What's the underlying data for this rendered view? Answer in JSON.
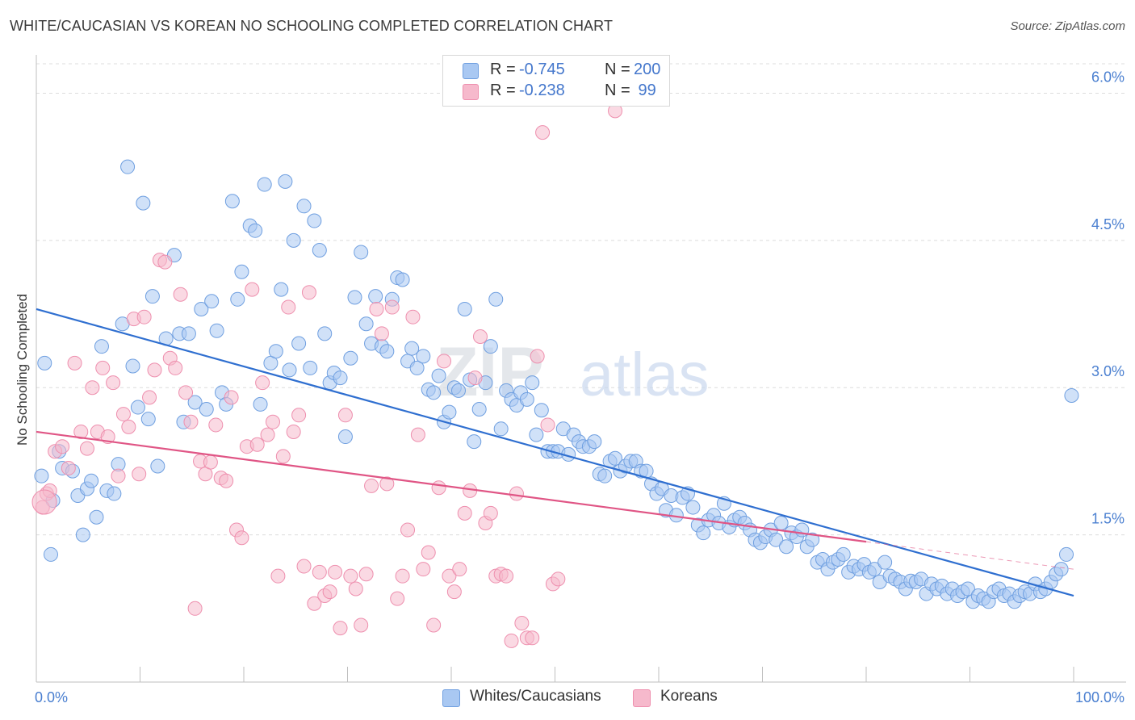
{
  "title": "WHITE/CAUCASIAN VS KOREAN NO SCHOOLING COMPLETED CORRELATION CHART",
  "source": "Source: ZipAtlas.com",
  "watermark": "ZIPatlas",
  "legend": {
    "rows": [
      {
        "r_label": "R =",
        "r_value": "-0.745",
        "n_label": "N =",
        "n_value": "200",
        "color": "#a9c8f2"
      },
      {
        "r_label": "R =",
        "r_value": "-0.238",
        "n_label": "N =",
        "n_value": " 99",
        "color": "#f6b9cc"
      }
    ]
  },
  "bottom_legend": [
    {
      "label": "Whites/Caucasians",
      "color": "#a9c8f2"
    },
    {
      "label": "Koreans",
      "color": "#f6b9cc"
    }
  ],
  "chart_data": {
    "type": "scatter",
    "title": "WHITE/CAUCASIAN VS KOREAN NO SCHOOLING COMPLETED CORRELATION CHART",
    "xlabel": "",
    "ylabel": "No Schooling Completed",
    "xlim": [
      0,
      100
    ],
    "ylim": [
      0,
      6.3
    ],
    "x_tick_labels": [
      "0.0%",
      "100.0%"
    ],
    "y_ticks": [
      1.5,
      3.0,
      4.5,
      6.0
    ],
    "y_tick_labels": [
      "1.5%",
      "3.0%",
      "4.5%",
      "6.0%"
    ],
    "grid": true,
    "legend_position": "top-center",
    "series": [
      {
        "name": "Whites/Caucasians",
        "color": "#a9c8f2",
        "stroke": "#6f9fe0",
        "trend": {
          "x": [
            0,
            100
          ],
          "y": [
            3.8,
            0.88
          ],
          "color": "#2f6fd0"
        },
        "points": [
          [
            0.5,
            2.1
          ],
          [
            0.8,
            3.25
          ],
          [
            1.4,
            1.3
          ],
          [
            1.6,
            1.85
          ],
          [
            2.2,
            2.35
          ],
          [
            2.5,
            2.18
          ],
          [
            3.5,
            2.15
          ],
          [
            4,
            1.9
          ],
          [
            4.5,
            1.5
          ],
          [
            4.9,
            1.97
          ],
          [
            5.3,
            2.05
          ],
          [
            5.8,
            1.68
          ],
          [
            6.3,
            3.42
          ],
          [
            6.8,
            1.95
          ],
          [
            7.5,
            1.92
          ],
          [
            7.9,
            2.22
          ],
          [
            8.3,
            3.65
          ],
          [
            8.8,
            5.25
          ],
          [
            9.3,
            3.22
          ],
          [
            9.8,
            2.8
          ],
          [
            10.3,
            4.88
          ],
          [
            10.8,
            2.68
          ],
          [
            11.2,
            3.93
          ],
          [
            11.7,
            2.2
          ],
          [
            12.5,
            3.5
          ],
          [
            13.3,
            4.35
          ],
          [
            13.8,
            3.55
          ],
          [
            14.2,
            2.65
          ],
          [
            14.7,
            3.55
          ],
          [
            15.3,
            2.85
          ],
          [
            15.9,
            3.8
          ],
          [
            16.4,
            2.78
          ],
          [
            16.9,
            3.88
          ],
          [
            17.4,
            3.58
          ],
          [
            17.9,
            2.95
          ],
          [
            18.3,
            2.83
          ],
          [
            18.9,
            4.9
          ],
          [
            19.4,
            3.9
          ],
          [
            19.8,
            4.18
          ],
          [
            20.6,
            4.65
          ],
          [
            21.1,
            4.6
          ],
          [
            21.6,
            2.83
          ],
          [
            22,
            5.07
          ],
          [
            22.6,
            3.25
          ],
          [
            23.1,
            3.37
          ],
          [
            23.6,
            4.0
          ],
          [
            24,
            5.1
          ],
          [
            24.4,
            3.18
          ],
          [
            24.8,
            4.5
          ],
          [
            25.3,
            3.45
          ],
          [
            25.8,
            4.85
          ],
          [
            26.4,
            3.2
          ],
          [
            26.8,
            4.7
          ],
          [
            27.3,
            4.4
          ],
          [
            27.8,
            3.55
          ],
          [
            28.3,
            3.05
          ],
          [
            28.7,
            3.15
          ],
          [
            29.3,
            3.1
          ],
          [
            29.8,
            2.5
          ],
          [
            30.3,
            3.3
          ],
          [
            30.7,
            3.92
          ],
          [
            31.3,
            4.38
          ],
          [
            31.8,
            3.65
          ],
          [
            32.3,
            3.45
          ],
          [
            32.7,
            3.93
          ],
          [
            33.3,
            3.42
          ],
          [
            33.8,
            3.37
          ],
          [
            34.3,
            3.9
          ],
          [
            34.8,
            4.12
          ],
          [
            35.3,
            4.1
          ],
          [
            35.8,
            3.27
          ],
          [
            36.2,
            3.4
          ],
          [
            36.7,
            3.2
          ],
          [
            37.3,
            3.32
          ],
          [
            37.8,
            2.98
          ],
          [
            38.3,
            2.95
          ],
          [
            38.8,
            3.12
          ],
          [
            39.3,
            2.65
          ],
          [
            39.8,
            2.75
          ],
          [
            40.3,
            3.0
          ],
          [
            40.7,
            2.97
          ],
          [
            41.3,
            3.8
          ],
          [
            41.8,
            3.08
          ],
          [
            42.2,
            2.45
          ],
          [
            42.7,
            2.78
          ],
          [
            43.3,
            3.05
          ],
          [
            43.8,
            3.42
          ],
          [
            44.3,
            3.9
          ],
          [
            44.8,
            2.58
          ],
          [
            45.3,
            2.97
          ],
          [
            45.8,
            2.88
          ],
          [
            46.3,
            2.82
          ],
          [
            46.7,
            2.95
          ],
          [
            47.3,
            2.88
          ],
          [
            47.8,
            3.05
          ],
          [
            48.2,
            2.52
          ],
          [
            48.7,
            2.77
          ],
          [
            49.3,
            2.35
          ],
          [
            49.8,
            2.35
          ],
          [
            50.3,
            2.35
          ],
          [
            50.8,
            2.58
          ],
          [
            51.3,
            2.32
          ],
          [
            51.8,
            2.52
          ],
          [
            52.3,
            2.45
          ],
          [
            52.7,
            2.4
          ],
          [
            53.3,
            2.4
          ],
          [
            53.8,
            2.45
          ],
          [
            54.3,
            2.12
          ],
          [
            54.8,
            2.1
          ],
          [
            55.3,
            2.25
          ],
          [
            55.8,
            2.28
          ],
          [
            56.3,
            2.15
          ],
          [
            56.8,
            2.2
          ],
          [
            57.3,
            2.25
          ],
          [
            57.8,
            2.25
          ],
          [
            58.3,
            2.15
          ],
          [
            58.8,
            2.15
          ],
          [
            59.3,
            2.02
          ],
          [
            59.8,
            1.92
          ],
          [
            60.3,
            1.97
          ],
          [
            60.7,
            1.75
          ],
          [
            61.2,
            1.9
          ],
          [
            61.7,
            1.7
          ],
          [
            62.3,
            1.88
          ],
          [
            62.8,
            1.92
          ],
          [
            63.3,
            1.78
          ],
          [
            63.8,
            1.6
          ],
          [
            64.3,
            1.52
          ],
          [
            64.8,
            1.65
          ],
          [
            65.3,
            1.7
          ],
          [
            65.8,
            1.62
          ],
          [
            66.3,
            1.82
          ],
          [
            66.8,
            1.58
          ],
          [
            67.3,
            1.65
          ],
          [
            67.8,
            1.68
          ],
          [
            68.3,
            1.62
          ],
          [
            68.8,
            1.55
          ],
          [
            69.3,
            1.45
          ],
          [
            69.8,
            1.42
          ],
          [
            70.3,
            1.48
          ],
          [
            70.8,
            1.55
          ],
          [
            71.3,
            1.45
          ],
          [
            71.8,
            1.62
          ],
          [
            72.3,
            1.38
          ],
          [
            72.8,
            1.52
          ],
          [
            73.3,
            1.48
          ],
          [
            73.8,
            1.55
          ],
          [
            74.3,
            1.38
          ],
          [
            74.8,
            1.45
          ],
          [
            75.3,
            1.22
          ],
          [
            75.8,
            1.25
          ],
          [
            76.3,
            1.15
          ],
          [
            76.8,
            1.22
          ],
          [
            77.3,
            1.25
          ],
          [
            77.8,
            1.3
          ],
          [
            78.3,
            1.12
          ],
          [
            78.8,
            1.18
          ],
          [
            79.3,
            1.15
          ],
          [
            79.8,
            1.2
          ],
          [
            80.3,
            1.12
          ],
          [
            80.8,
            1.15
          ],
          [
            81.3,
            1.02
          ],
          [
            81.8,
            1.22
          ],
          [
            82.3,
            1.08
          ],
          [
            82.8,
            1.05
          ],
          [
            83.3,
            1.02
          ],
          [
            83.8,
            0.95
          ],
          [
            84.3,
            1.03
          ],
          [
            84.8,
            1.02
          ],
          [
            85.3,
            1.05
          ],
          [
            85.8,
            0.9
          ],
          [
            86.3,
            1.0
          ],
          [
            86.8,
            0.95
          ],
          [
            87.3,
            0.98
          ],
          [
            87.8,
            0.9
          ],
          [
            88.3,
            0.95
          ],
          [
            88.8,
            0.88
          ],
          [
            89.3,
            0.92
          ],
          [
            89.8,
            0.95
          ],
          [
            90.3,
            0.82
          ],
          [
            90.8,
            0.88
          ],
          [
            91.3,
            0.85
          ],
          [
            91.8,
            0.82
          ],
          [
            92.3,
            0.92
          ],
          [
            92.8,
            0.95
          ],
          [
            93.3,
            0.88
          ],
          [
            93.8,
            0.9
          ],
          [
            94.3,
            0.82
          ],
          [
            94.8,
            0.88
          ],
          [
            95.3,
            0.92
          ],
          [
            95.8,
            0.9
          ],
          [
            96.3,
            1.0
          ],
          [
            96.8,
            0.92
          ],
          [
            97.3,
            0.95
          ],
          [
            97.8,
            1.02
          ],
          [
            98.3,
            1.1
          ],
          [
            98.8,
            1.15
          ],
          [
            99.3,
            1.3
          ],
          [
            99.8,
            2.92
          ]
        ]
      },
      {
        "name": "Koreans",
        "color": "#f6b9cc",
        "stroke": "#ee8fae",
        "trend": {
          "x": [
            0,
            80
          ],
          "y": [
            2.55,
            1.43
          ],
          "color": "#e05585"
        },
        "trend_dashed": {
          "x": [
            80,
            100
          ],
          "y": [
            1.43,
            1.15
          ]
        },
        "points": [
          [
            0.6,
            1.78
          ],
          [
            1.0,
            1.92
          ],
          [
            1.3,
            1.95
          ],
          [
            1.8,
            2.35
          ],
          [
            2.5,
            2.4
          ],
          [
            3.1,
            2.18
          ],
          [
            3.7,
            3.25
          ],
          [
            4.3,
            2.55
          ],
          [
            4.9,
            2.38
          ],
          [
            5.4,
            3.0
          ],
          [
            5.9,
            2.55
          ],
          [
            6.4,
            3.2
          ],
          [
            6.9,
            2.5
          ],
          [
            7.4,
            3.05
          ],
          [
            7.9,
            2.1
          ],
          [
            8.4,
            2.73
          ],
          [
            8.9,
            2.6
          ],
          [
            9.4,
            3.7
          ],
          [
            9.9,
            2.12
          ],
          [
            10.4,
            3.72
          ],
          [
            10.9,
            2.9
          ],
          [
            11.4,
            3.18
          ],
          [
            11.9,
            4.3
          ],
          [
            12.4,
            4.28
          ],
          [
            12.9,
            3.3
          ],
          [
            13.4,
            3.2
          ],
          [
            13.9,
            3.95
          ],
          [
            14.4,
            2.95
          ],
          [
            14.9,
            2.65
          ],
          [
            15.3,
            0.75
          ],
          [
            15.8,
            2.25
          ],
          [
            16.3,
            2.12
          ],
          [
            16.8,
            2.24
          ],
          [
            17.3,
            2.62
          ],
          [
            17.8,
            2.08
          ],
          [
            18.3,
            2.05
          ],
          [
            18.8,
            2.9
          ],
          [
            19.3,
            1.55
          ],
          [
            19.8,
            1.47
          ],
          [
            20.3,
            2.4
          ],
          [
            20.8,
            4.0
          ],
          [
            21.3,
            2.42
          ],
          [
            21.8,
            3.05
          ],
          [
            22.3,
            2.52
          ],
          [
            22.8,
            2.65
          ],
          [
            23.3,
            1.08
          ],
          [
            23.8,
            2.3
          ],
          [
            24.3,
            3.82
          ],
          [
            24.8,
            2.55
          ],
          [
            25.3,
            2.72
          ],
          [
            25.8,
            1.18
          ],
          [
            26.3,
            3.97
          ],
          [
            26.8,
            0.8
          ],
          [
            27.3,
            1.12
          ],
          [
            27.8,
            0.88
          ],
          [
            28.3,
            0.92
          ],
          [
            28.8,
            1.12
          ],
          [
            29.3,
            0.55
          ],
          [
            29.8,
            2.72
          ],
          [
            30.3,
            1.08
          ],
          [
            30.8,
            0.95
          ],
          [
            31.3,
            0.58
          ],
          [
            31.8,
            1.1
          ],
          [
            32.3,
            2.0
          ],
          [
            32.8,
            3.8
          ],
          [
            33.3,
            3.55
          ],
          [
            33.8,
            2.02
          ],
          [
            34.3,
            3.82
          ],
          [
            34.8,
            0.85
          ],
          [
            35.3,
            1.08
          ],
          [
            35.8,
            1.55
          ],
          [
            36.3,
            3.72
          ],
          [
            36.8,
            2.52
          ],
          [
            37.3,
            1.15
          ],
          [
            37.8,
            1.32
          ],
          [
            38.3,
            0.58
          ],
          [
            38.8,
            1.98
          ],
          [
            39.3,
            3.27
          ],
          [
            39.8,
            1.08
          ],
          [
            40.3,
            0.92
          ],
          [
            40.8,
            1.15
          ],
          [
            41.3,
            1.72
          ],
          [
            41.8,
            1.95
          ],
          [
            42.3,
            3.1
          ],
          [
            42.8,
            3.52
          ],
          [
            43.3,
            1.62
          ],
          [
            43.8,
            1.72
          ],
          [
            44.3,
            1.08
          ],
          [
            44.8,
            1.1
          ],
          [
            45.3,
            1.08
          ],
          [
            45.8,
            0.42
          ],
          [
            46.3,
            1.92
          ],
          [
            46.8,
            0.6
          ],
          [
            47.3,
            0.45
          ],
          [
            47.8,
            0.45
          ],
          [
            48.3,
            3.32
          ],
          [
            48.8,
            5.6
          ],
          [
            49.3,
            2.62
          ],
          [
            49.8,
            1.0
          ],
          [
            50.3,
            1.05
          ],
          [
            55.8,
            5.82
          ]
        ]
      }
    ]
  }
}
